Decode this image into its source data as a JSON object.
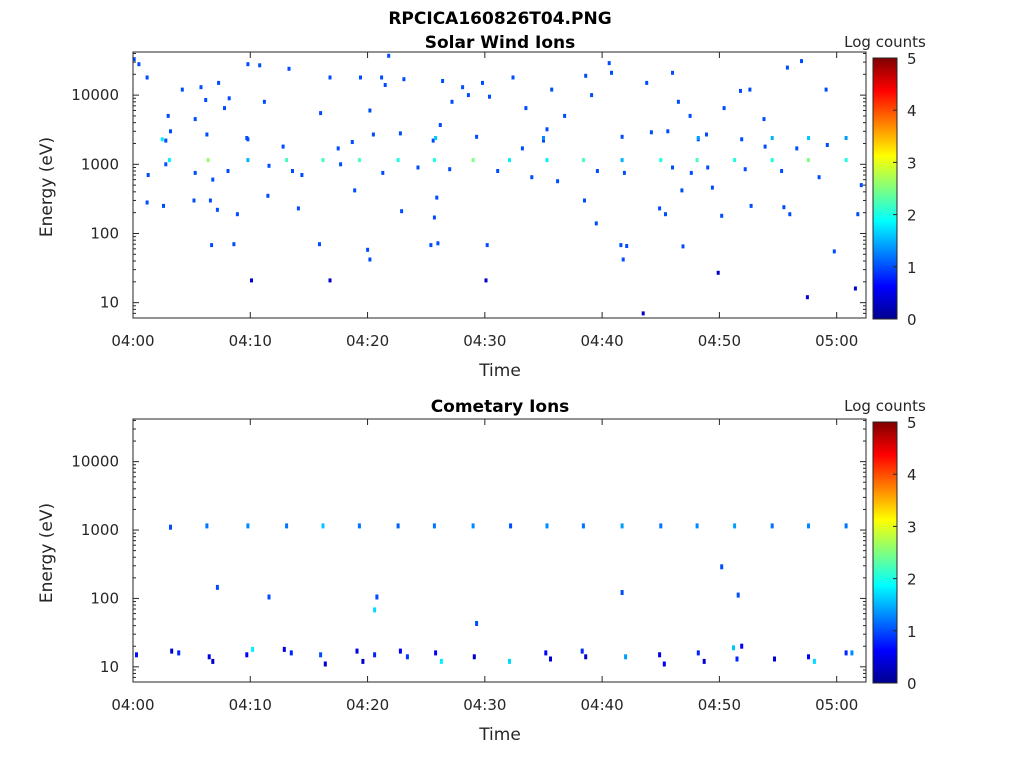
{
  "figure_title": "RPCICA160826T04.PNG",
  "chart_data": [
    {
      "type": "heatmap",
      "title": "Solar Wind Ions",
      "xlabel": "Time",
      "ylabel": "Energy (eV)",
      "x_ticks": [
        "04:00",
        "04:10",
        "04:20",
        "04:30",
        "04:40",
        "04:50",
        "05:00"
      ],
      "x_range_min": [
        0,
        62.5
      ],
      "y_ticks": [
        "10",
        "100",
        "1000",
        "10000"
      ],
      "y_scale": "log",
      "y_range_ev": [
        6,
        42000
      ],
      "colorbar": {
        "label": "Log counts",
        "ticks": [
          "0",
          "1",
          "2",
          "3",
          "4",
          "5"
        ],
        "range": [
          0,
          5
        ]
      },
      "cells": [
        [
          0.1,
          33000,
          1
        ],
        [
          0.5,
          28000,
          1
        ],
        [
          1.2,
          18000,
          1
        ],
        [
          3.0,
          5000,
          1
        ],
        [
          4.2,
          12000,
          1
        ],
        [
          5.3,
          4500,
          1
        ],
        [
          5.8,
          13000,
          1
        ],
        [
          6.2,
          8500,
          1
        ],
        [
          7.3,
          15000,
          1
        ],
        [
          7.8,
          6500,
          1
        ],
        [
          8.2,
          9000,
          1
        ],
        [
          9.8,
          28000,
          1
        ],
        [
          10.8,
          27000,
          1
        ],
        [
          11.2,
          8000,
          1
        ],
        [
          13.3,
          24000,
          1
        ],
        [
          16.0,
          5500,
          1
        ],
        [
          16.8,
          18000,
          1
        ],
        [
          19.4,
          18000,
          1
        ],
        [
          20.2,
          6000,
          1
        ],
        [
          21.2,
          18000,
          1
        ],
        [
          21.5,
          14000,
          1
        ],
        [
          21.8,
          37000,
          1
        ],
        [
          23.1,
          17000,
          1
        ],
        [
          26.4,
          16000,
          1
        ],
        [
          27.2,
          8000,
          1
        ],
        [
          28.1,
          13000,
          1
        ],
        [
          28.6,
          10000,
          1
        ],
        [
          29.8,
          15000,
          1
        ],
        [
          30.4,
          9500,
          1
        ],
        [
          32.4,
          18000,
          1
        ],
        [
          33.5,
          6500,
          1
        ],
        [
          35.7,
          12000,
          1
        ],
        [
          38.6,
          19000,
          1
        ],
        [
          39.1,
          10000,
          1
        ],
        [
          40.6,
          29000,
          1
        ],
        [
          40.8,
          21000,
          1
        ],
        [
          43.8,
          15000,
          1
        ],
        [
          46.0,
          21000,
          1
        ],
        [
          46.5,
          8000,
          1
        ],
        [
          47.5,
          5000,
          1
        ],
        [
          50.4,
          6500,
          1
        ],
        [
          51.8,
          11500,
          1
        ],
        [
          52.6,
          12000,
          1
        ],
        [
          53.8,
          4500,
          1
        ],
        [
          55.8,
          25000,
          1
        ],
        [
          57.0,
          31000,
          1
        ],
        [
          59.1,
          12000,
          1
        ],
        [
          2.8,
          2200,
          1
        ],
        [
          3.2,
          3000,
          1
        ],
        [
          6.3,
          2700,
          1
        ],
        [
          9.8,
          2300,
          1
        ],
        [
          12.8,
          1800,
          1
        ],
        [
          17.5,
          1700,
          1
        ],
        [
          18.7,
          2100,
          1
        ],
        [
          20.5,
          2700,
          1
        ],
        [
          22.8,
          2800,
          1
        ],
        [
          25.6,
          2200,
          1
        ],
        [
          26.2,
          3700,
          1
        ],
        [
          29.3,
          2500,
          1
        ],
        [
          33.2,
          1700,
          1
        ],
        [
          35.0,
          2200,
          1
        ],
        [
          35.3,
          3200,
          1
        ],
        [
          36.8,
          5000,
          1
        ],
        [
          41.7,
          2500,
          1
        ],
        [
          44.2,
          2900,
          1
        ],
        [
          45.6,
          3000,
          1
        ],
        [
          48.2,
          2300,
          1
        ],
        [
          48.9,
          2700,
          1
        ],
        [
          51.9,
          2300,
          1
        ],
        [
          53.9,
          1800,
          1
        ],
        [
          56.6,
          1700,
          1
        ],
        [
          59.2,
          1900,
          1
        ],
        [
          3.1,
          1150,
          1.8
        ],
        [
          6.4,
          1150,
          2.6
        ],
        [
          9.8,
          1150,
          1.5
        ],
        [
          13.1,
          1150,
          2.2
        ],
        [
          16.2,
          1150,
          2.2
        ],
        [
          19.3,
          1150,
          2.2
        ],
        [
          22.6,
          1150,
          2.0
        ],
        [
          25.7,
          1150,
          2.0
        ],
        [
          29.0,
          1150,
          2.5
        ],
        [
          32.1,
          1150,
          1.8
        ],
        [
          35.3,
          1150,
          1.8
        ],
        [
          38.4,
          1150,
          2.2
        ],
        [
          41.7,
          1150,
          1.5
        ],
        [
          45.0,
          1150,
          2.0
        ],
        [
          48.1,
          1150,
          2.2
        ],
        [
          51.3,
          1150,
          2.0
        ],
        [
          54.5,
          1150,
          2.0
        ],
        [
          57.6,
          1150,
          2.5
        ],
        [
          60.8,
          1150,
          2.0
        ],
        [
          2.5,
          2300,
          1.8
        ],
        [
          9.7,
          2400,
          1.0
        ],
        [
          25.8,
          2400,
          1.6
        ],
        [
          35.0,
          2400,
          1.3
        ],
        [
          48.2,
          2400,
          1.4
        ],
        [
          60.8,
          2400,
          1.4
        ],
        [
          54.5,
          2400,
          1.5
        ],
        [
          57.6,
          2400,
          1.6
        ],
        [
          1.3,
          700,
          1
        ],
        [
          2.8,
          1000,
          1
        ],
        [
          5.3,
          750,
          1
        ],
        [
          6.8,
          600,
          1
        ],
        [
          8.1,
          800,
          1
        ],
        [
          11.6,
          950,
          1
        ],
        [
          13.6,
          800,
          1
        ],
        [
          14.4,
          700,
          1
        ],
        [
          17.7,
          1000,
          1
        ],
        [
          21.3,
          750,
          1
        ],
        [
          24.3,
          900,
          1
        ],
        [
          27.0,
          850,
          1
        ],
        [
          31.1,
          800,
          1
        ],
        [
          34.0,
          650,
          1
        ],
        [
          36.2,
          570,
          1
        ],
        [
          39.6,
          800,
          1
        ],
        [
          41.9,
          750,
          1
        ],
        [
          46.0,
          900,
          1
        ],
        [
          47.6,
          750,
          1
        ],
        [
          49.0,
          900,
          1
        ],
        [
          52.2,
          850,
          1
        ],
        [
          55.3,
          800,
          1
        ],
        [
          58.5,
          650,
          1
        ],
        [
          62.1,
          500,
          1
        ],
        [
          1.2,
          280,
          1
        ],
        [
          2.6,
          250,
          1
        ],
        [
          5.2,
          300,
          1
        ],
        [
          6.6,
          300,
          1
        ],
        [
          7.2,
          220,
          1
        ],
        [
          8.9,
          190,
          1
        ],
        [
          11.5,
          350,
          1
        ],
        [
          14.1,
          230,
          1
        ],
        [
          18.9,
          420,
          1
        ],
        [
          22.9,
          210,
          1
        ],
        [
          25.7,
          170,
          1
        ],
        [
          25.9,
          330,
          1
        ],
        [
          38.5,
          300,
          1
        ],
        [
          39.5,
          140,
          1
        ],
        [
          44.9,
          230,
          1
        ],
        [
          45.4,
          190,
          1
        ],
        [
          46.8,
          420,
          1
        ],
        [
          49.4,
          460,
          1
        ],
        [
          50.2,
          180,
          1
        ],
        [
          52.7,
          250,
          1
        ],
        [
          55.5,
          240,
          1
        ],
        [
          56.0,
          190,
          1
        ],
        [
          61.8,
          190,
          1
        ],
        [
          6.7,
          68,
          1
        ],
        [
          8.6,
          70,
          1
        ],
        [
          15.9,
          70,
          1
        ],
        [
          20.0,
          58,
          1
        ],
        [
          25.4,
          68,
          1
        ],
        [
          26.0,
          72,
          1
        ],
        [
          30.2,
          68,
          1
        ],
        [
          41.6,
          68,
          1
        ],
        [
          42.1,
          66,
          1
        ],
        [
          46.9,
          65,
          1
        ],
        [
          59.8,
          55,
          1
        ],
        [
          20.2,
          42,
          1
        ],
        [
          41.8,
          42,
          1
        ],
        [
          10.1,
          21,
          0.4
        ],
        [
          16.8,
          21,
          0.4
        ],
        [
          30.1,
          21,
          0.4
        ],
        [
          49.9,
          27,
          0.4
        ],
        [
          57.5,
          12,
          0.4
        ],
        [
          61.6,
          16,
          0.4
        ],
        [
          43.5,
          7,
          0.4
        ]
      ]
    },
    {
      "type": "heatmap",
      "title": "Cometary Ions",
      "xlabel": "Time",
      "ylabel": "Energy (eV)",
      "x_ticks": [
        "04:00",
        "04:10",
        "04:20",
        "04:30",
        "04:40",
        "04:50",
        "05:00"
      ],
      "x_range_min": [
        0,
        62.5
      ],
      "y_ticks": [
        "10",
        "100",
        "1000",
        "10000"
      ],
      "y_scale": "log",
      "y_range_ev": [
        6,
        42000
      ],
      "colorbar": {
        "label": "Log counts",
        "ticks": [
          "0",
          "1",
          "2",
          "3",
          "4",
          "5"
        ],
        "range": [
          0,
          5
        ]
      },
      "cells": [
        [
          3.2,
          1100,
          1.0
        ],
        [
          6.3,
          1150,
          1.2
        ],
        [
          9.8,
          1150,
          1.3
        ],
        [
          13.1,
          1150,
          1.2
        ],
        [
          16.2,
          1150,
          1.6
        ],
        [
          19.3,
          1150,
          1.2
        ],
        [
          22.6,
          1150,
          1.1
        ],
        [
          25.7,
          1150,
          1.2
        ],
        [
          29.0,
          1150,
          1.3
        ],
        [
          32.2,
          1150,
          1.0
        ],
        [
          35.3,
          1150,
          1.3
        ],
        [
          38.4,
          1150,
          1.2
        ],
        [
          41.7,
          1150,
          1.4
        ],
        [
          45.0,
          1150,
          1.2
        ],
        [
          48.1,
          1150,
          1.3
        ],
        [
          51.3,
          1150,
          1.4
        ],
        [
          54.5,
          1150,
          1.2
        ],
        [
          57.6,
          1150,
          1.3
        ],
        [
          60.8,
          1150,
          1.2
        ],
        [
          7.2,
          145,
          1
        ],
        [
          11.6,
          105,
          1
        ],
        [
          20.8,
          105,
          1
        ],
        [
          20.6,
          68,
          1.7
        ],
        [
          29.3,
          43,
          1
        ],
        [
          41.7,
          122,
          1
        ],
        [
          50.2,
          290,
          1
        ],
        [
          51.6,
          112,
          1
        ],
        [
          0.3,
          15,
          0.7
        ],
        [
          3.3,
          17,
          0.4
        ],
        [
          3.9,
          16,
          0.8
        ],
        [
          6.5,
          14,
          0.5
        ],
        [
          6.8,
          12,
          0.3
        ],
        [
          9.7,
          15,
          0.6
        ],
        [
          10.2,
          18,
          1.8
        ],
        [
          12.9,
          18,
          0.5
        ],
        [
          13.5,
          16,
          0.8
        ],
        [
          16.0,
          15,
          1.0
        ],
        [
          16.4,
          11,
          0.4
        ],
        [
          19.1,
          17,
          0.5
        ],
        [
          19.6,
          12,
          0.4
        ],
        [
          20.6,
          15,
          0.8
        ],
        [
          22.8,
          17,
          0.6
        ],
        [
          23.4,
          14,
          0.9
        ],
        [
          25.8,
          16,
          0.6
        ],
        [
          26.3,
          12,
          1.8
        ],
        [
          29.1,
          14,
          0.4
        ],
        [
          32.1,
          12,
          1.7
        ],
        [
          35.2,
          16,
          0.6
        ],
        [
          35.6,
          13,
          0.4
        ],
        [
          38.3,
          17,
          0.8
        ],
        [
          38.6,
          14,
          0.4
        ],
        [
          42.0,
          14,
          1.4
        ],
        [
          44.9,
          15,
          0.5
        ],
        [
          45.3,
          11,
          0.6
        ],
        [
          48.2,
          16,
          0.8
        ],
        [
          48.7,
          12,
          0.4
        ],
        [
          51.2,
          19,
          1.6
        ],
        [
          51.5,
          13,
          0.8
        ],
        [
          54.7,
          13,
          0.4
        ],
        [
          57.6,
          14,
          0.6
        ],
        [
          58.1,
          12,
          1.7
        ],
        [
          60.8,
          16,
          0.8
        ],
        [
          61.3,
          16,
          1.3
        ],
        [
          51.9,
          20,
          0.6
        ]
      ]
    }
  ]
}
